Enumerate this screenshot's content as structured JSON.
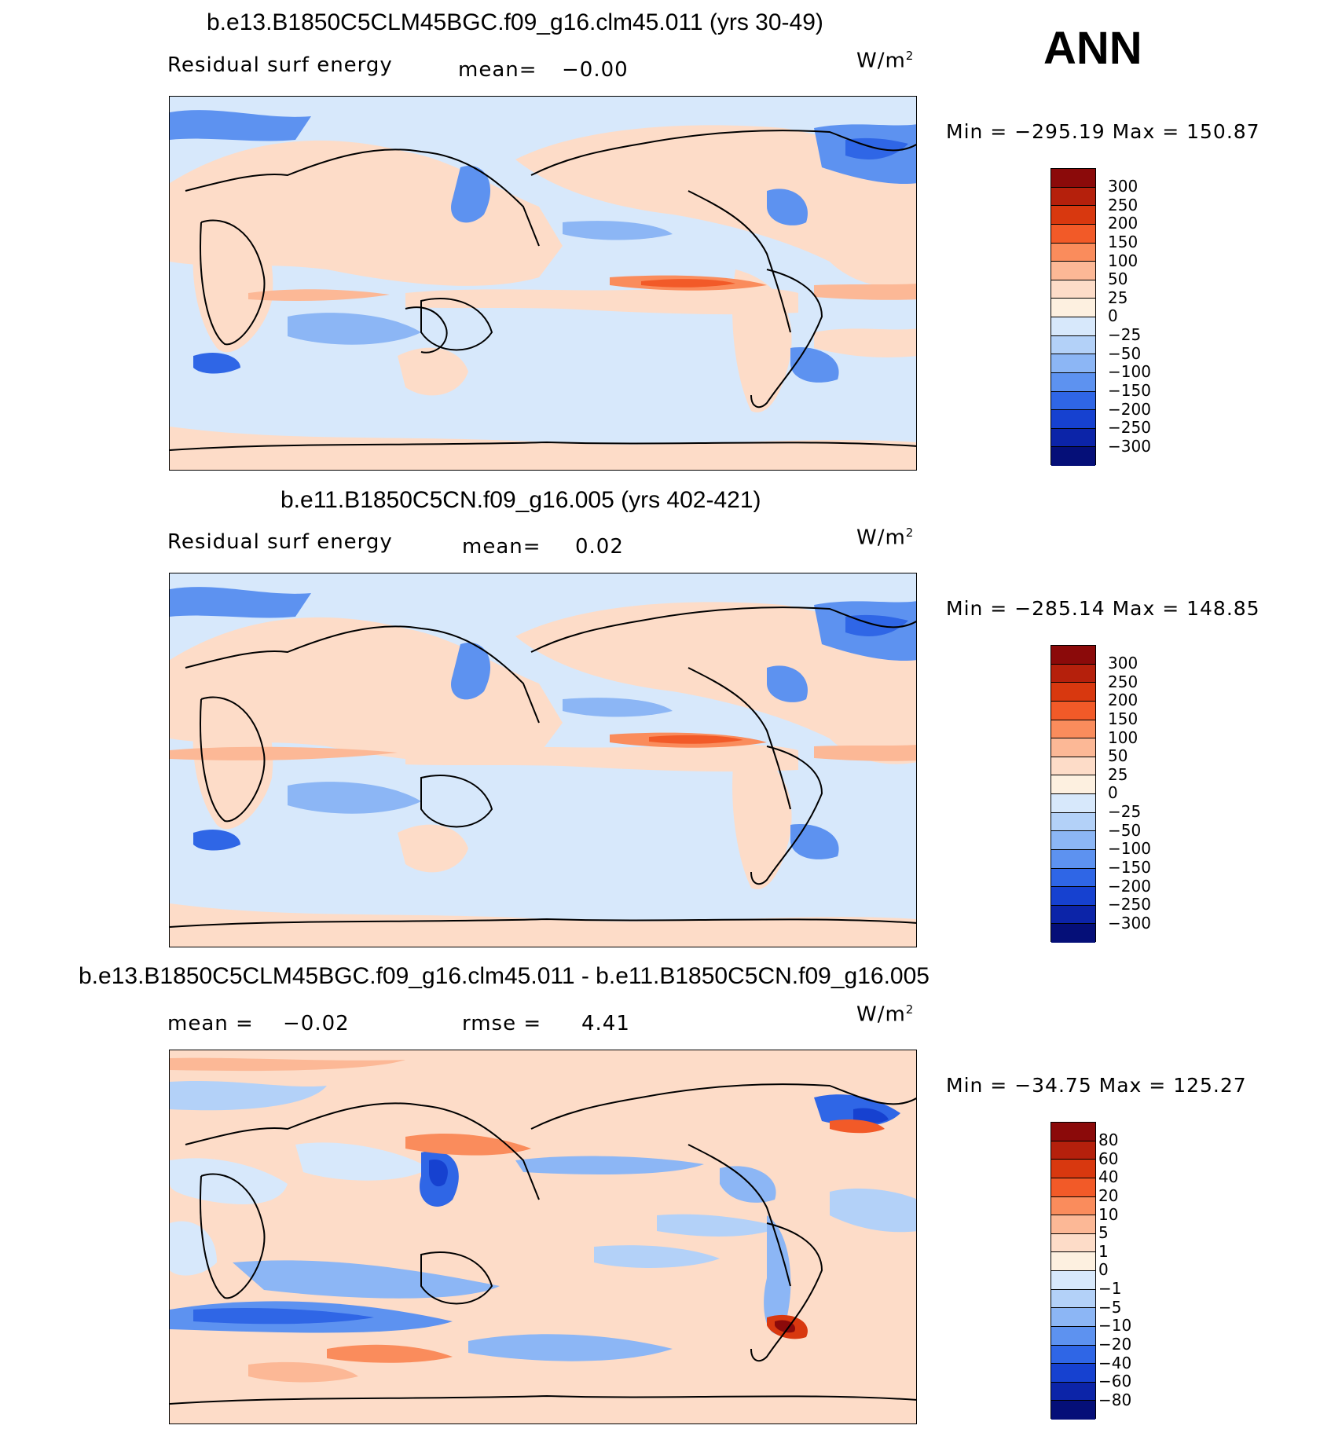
{
  "corner_label": "ANN",
  "units": "W/m",
  "units_sup": "2",
  "panels": [
    {
      "title": "b.e13.B1850C5CLM45BGC.f09_g16.clm45.011 (yrs 30-49)",
      "left_label": "Residual surf energy",
      "stat_label": "mean=",
      "stat_value": "−0.00",
      "minmax": "Min = −295.19 Max = 150.87",
      "colors": [
        "#8b0a0a",
        "#b5200c",
        "#d8380f",
        "#f25a28",
        "#fa8c5c",
        "#fcb896",
        "#fddcc8",
        "#fdf0e0",
        "#d7e8fb",
        "#b3d1f8",
        "#8cb6f5",
        "#5d92f0",
        "#2f66e6",
        "#1641d0",
        "#0c24a8",
        "#050f78"
      ],
      "labels": [
        "300",
        "250",
        "200",
        "150",
        "100",
        "50",
        "25",
        "0",
        "−25",
        "−50",
        "−100",
        "−150",
        "−200",
        "−250",
        "−300"
      ]
    },
    {
      "title": "b.e11.B1850C5CN.f09_g16.005 (yrs 402-421)",
      "left_label": "Residual surf energy",
      "stat_label": "mean=",
      "stat_value": "0.02",
      "minmax": "Min = −285.14 Max = 148.85",
      "colors": [
        "#8b0a0a",
        "#b5200c",
        "#d8380f",
        "#f25a28",
        "#fa8c5c",
        "#fcb896",
        "#fddcc8",
        "#fdf0e0",
        "#d7e8fb",
        "#b3d1f8",
        "#8cb6f5",
        "#5d92f0",
        "#2f66e6",
        "#1641d0",
        "#0c24a8",
        "#050f78"
      ],
      "labels": [
        "300",
        "250",
        "200",
        "150",
        "100",
        "50",
        "25",
        "0",
        "−25",
        "−50",
        "−100",
        "−150",
        "−200",
        "−250",
        "−300"
      ]
    },
    {
      "title": "b.e13.B1850C5CLM45BGC.f09_g16.clm45.011 - b.e11.B1850C5CN.f09_g16.005",
      "left_label": "mean =",
      "left_value": "−0.02",
      "stat_label": "rmse =",
      "stat_value": "4.41",
      "minmax": "Min = −34.75 Max = 125.27",
      "colors": [
        "#8b0a0a",
        "#b5200c",
        "#d8380f",
        "#f25a28",
        "#fa8c5c",
        "#fcb896",
        "#fddcc8",
        "#fdf0e0",
        "#d7e8fb",
        "#b3d1f8",
        "#8cb6f5",
        "#5d92f0",
        "#2f66e6",
        "#1641d0",
        "#0c24a8",
        "#050f78"
      ],
      "labels": [
        "80",
        "60",
        "40",
        "20",
        "10",
        "5",
        "1",
        "0",
        "−1",
        "−5",
        "−10",
        "−20",
        "−40",
        "−60",
        "−80"
      ]
    }
  ]
}
